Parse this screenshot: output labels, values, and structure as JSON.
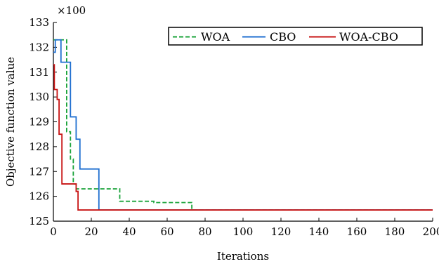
{
  "chart_data": {
    "type": "line",
    "title": "",
    "xlabel": "Iterations",
    "ylabel": "Objective function value",
    "y_multiplier": "×100",
    "xlim": [
      0,
      200
    ],
    "ylim": [
      125,
      133
    ],
    "xticks": [
      0,
      20,
      40,
      60,
      80,
      100,
      120,
      140,
      160,
      180,
      200
    ],
    "yticks": [
      125,
      126,
      127,
      128,
      129,
      130,
      131,
      132,
      133
    ],
    "grid": false,
    "legend_position": "top-right",
    "series": [
      {
        "name": "WOA",
        "color": "#1aa33a",
        "style": "dashed",
        "x": [
          0,
          7,
          7,
          9,
          9,
          10.5,
          10.5,
          12,
          12,
          35,
          35,
          53,
          53,
          73,
          73,
          200
        ],
        "y": [
          132.3,
          132.3,
          128.6,
          128.6,
          127.5,
          127.5,
          126.5,
          126.5,
          126.3,
          126.3,
          125.8,
          125.8,
          125.75,
          125.75,
          125.45,
          125.45
        ]
      },
      {
        "name": "CBO",
        "color": "#1f6fd0",
        "style": "solid",
        "x": [
          0,
          1,
          1,
          4,
          4,
          9,
          9,
          10.5,
          10.5,
          12,
          12,
          14,
          14,
          24,
          24,
          200
        ],
        "y": [
          131.8,
          131.8,
          132.3,
          132.3,
          131.4,
          131.4,
          129.2,
          129.2,
          129.2,
          129.2,
          128.3,
          128.3,
          127.1,
          127.1,
          125.45,
          125.45
        ]
      },
      {
        "name": "WOA-CBO",
        "color": "#c81414",
        "style": "solid",
        "x": [
          0,
          0.5,
          0.5,
          2,
          2,
          3,
          3,
          4.5,
          4.5,
          6,
          6,
          12,
          12,
          13,
          13,
          200
        ],
        "y": [
          131.3,
          131.3,
          130.3,
          130.3,
          129.9,
          129.9,
          128.5,
          128.5,
          126.5,
          126.5,
          126.5,
          126.5,
          126.2,
          126.2,
          125.45,
          125.45
        ]
      }
    ]
  }
}
